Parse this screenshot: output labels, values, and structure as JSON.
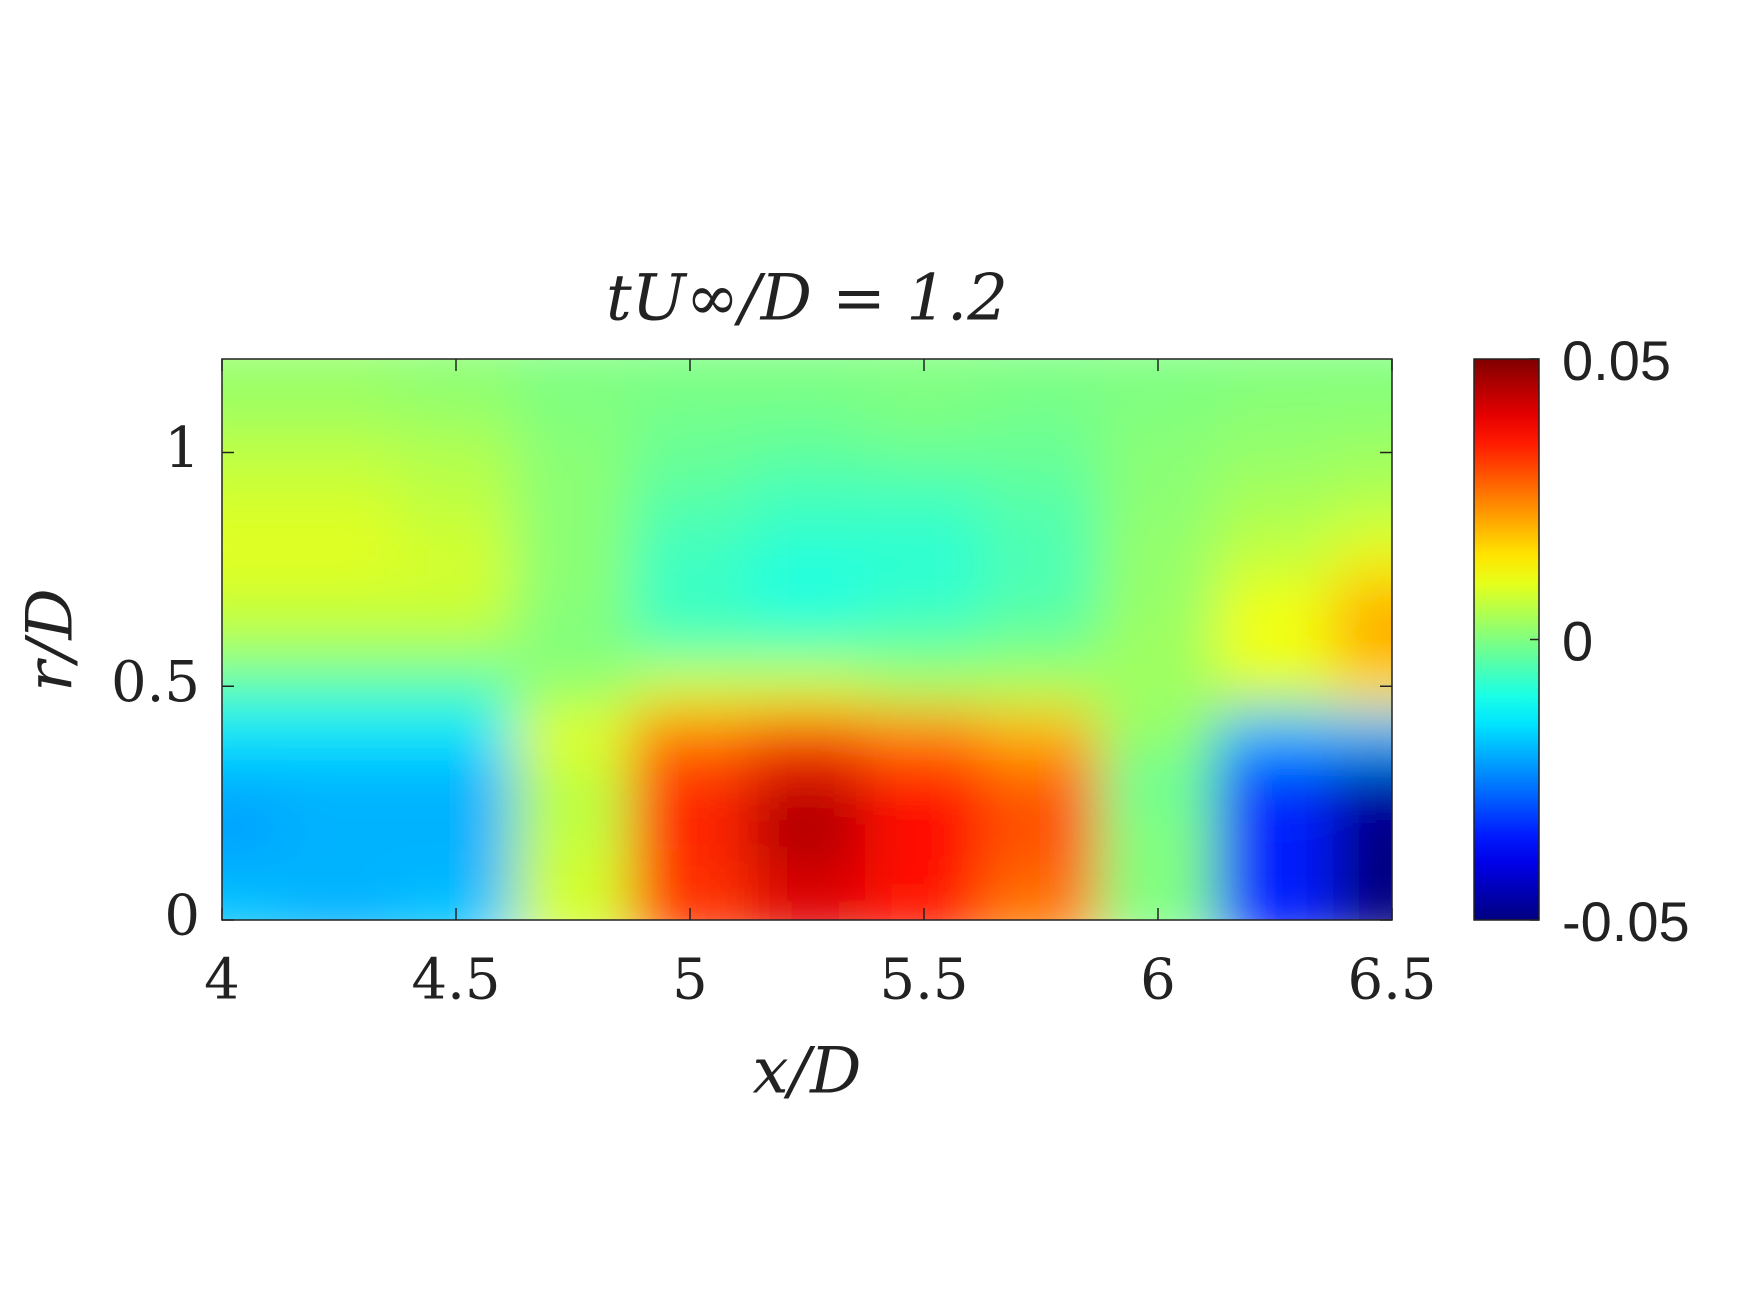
{
  "chart_data": {
    "type": "heatmap",
    "title": "tU∞/D = 1.2",
    "xlabel": "x/D",
    "ylabel": "r/D",
    "colormap": "jet",
    "x": [
      4,
      4.25,
      4.5,
      4.75,
      5,
      5.25,
      5.5,
      5.75,
      6,
      6.25,
      6.5
    ],
    "y": [
      0,
      0.1,
      0.2,
      0.3,
      0.4,
      0.5,
      0.6,
      0.7,
      0.8,
      0.9,
      1.0,
      1.1,
      1.2
    ],
    "values": [
      [
        -0.018,
        -0.02,
        -0.018,
        0.008,
        0.032,
        0.04,
        0.035,
        0.025,
        0,
        -0.035,
        -0.05
      ],
      [
        -0.02,
        -0.02,
        -0.02,
        0.008,
        0.033,
        0.042,
        0.036,
        0.028,
        0,
        -0.035,
        -0.05
      ],
      [
        -0.022,
        -0.02,
        -0.02,
        0.006,
        0.034,
        0.046,
        0.037,
        0.03,
        0,
        -0.035,
        -0.05
      ],
      [
        -0.02,
        -0.02,
        -0.02,
        0.006,
        0.033,
        0.042,
        0.034,
        0.028,
        -0.002,
        -0.032,
        -0.045
      ],
      [
        -0.015,
        -0.015,
        -0.015,
        0.01,
        0.025,
        0.03,
        0.025,
        0.02,
        0.002,
        -0.02,
        -0.02
      ],
      [
        -0.005,
        -0.005,
        -0.005,
        0.002,
        0.008,
        0.008,
        0.005,
        0.005,
        0.003,
        0.008,
        0.015
      ],
      [
        0.005,
        0.005,
        0.005,
        0,
        -0.005,
        -0.005,
        -0.004,
        -0.002,
        0.003,
        0.012,
        0.022
      ],
      [
        0.008,
        0.008,
        0.008,
        0.001,
        -0.007,
        -0.01,
        -0.008,
        -0.005,
        0.002,
        0.01,
        0.018
      ],
      [
        0.01,
        0.01,
        0.008,
        0.001,
        -0.006,
        -0.008,
        -0.008,
        -0.005,
        0.002,
        0.006,
        0.01
      ],
      [
        0.008,
        0.008,
        0.006,
        0.001,
        -0.004,
        -0.006,
        -0.006,
        -0.004,
        0.001,
        0.004,
        0.005
      ],
      [
        0.006,
        0.006,
        0.005,
        0.001,
        -0.002,
        -0.003,
        -0.002,
        -0.002,
        0.001,
        0.002,
        0.003
      ],
      [
        0.003,
        0.003,
        0.002,
        0,
        -0.001,
        -0.001,
        0,
        -0.001,
        0,
        0.001,
        0.001
      ],
      [
        0.002,
        0.002,
        0.001,
        0,
        0,
        0,
        0,
        0,
        0,
        0,
        0
      ]
    ],
    "xlim": [
      4,
      6.5
    ],
    "ylim": [
      0,
      1.2
    ],
    "xticks": [
      4,
      4.5,
      5,
      5.5,
      6,
      6.5
    ],
    "yticks": [
      0,
      0.5,
      1
    ],
    "clim": [
      -0.05,
      0.05
    ],
    "colorbar_ticks": [
      -0.05,
      0,
      0.05
    ]
  }
}
